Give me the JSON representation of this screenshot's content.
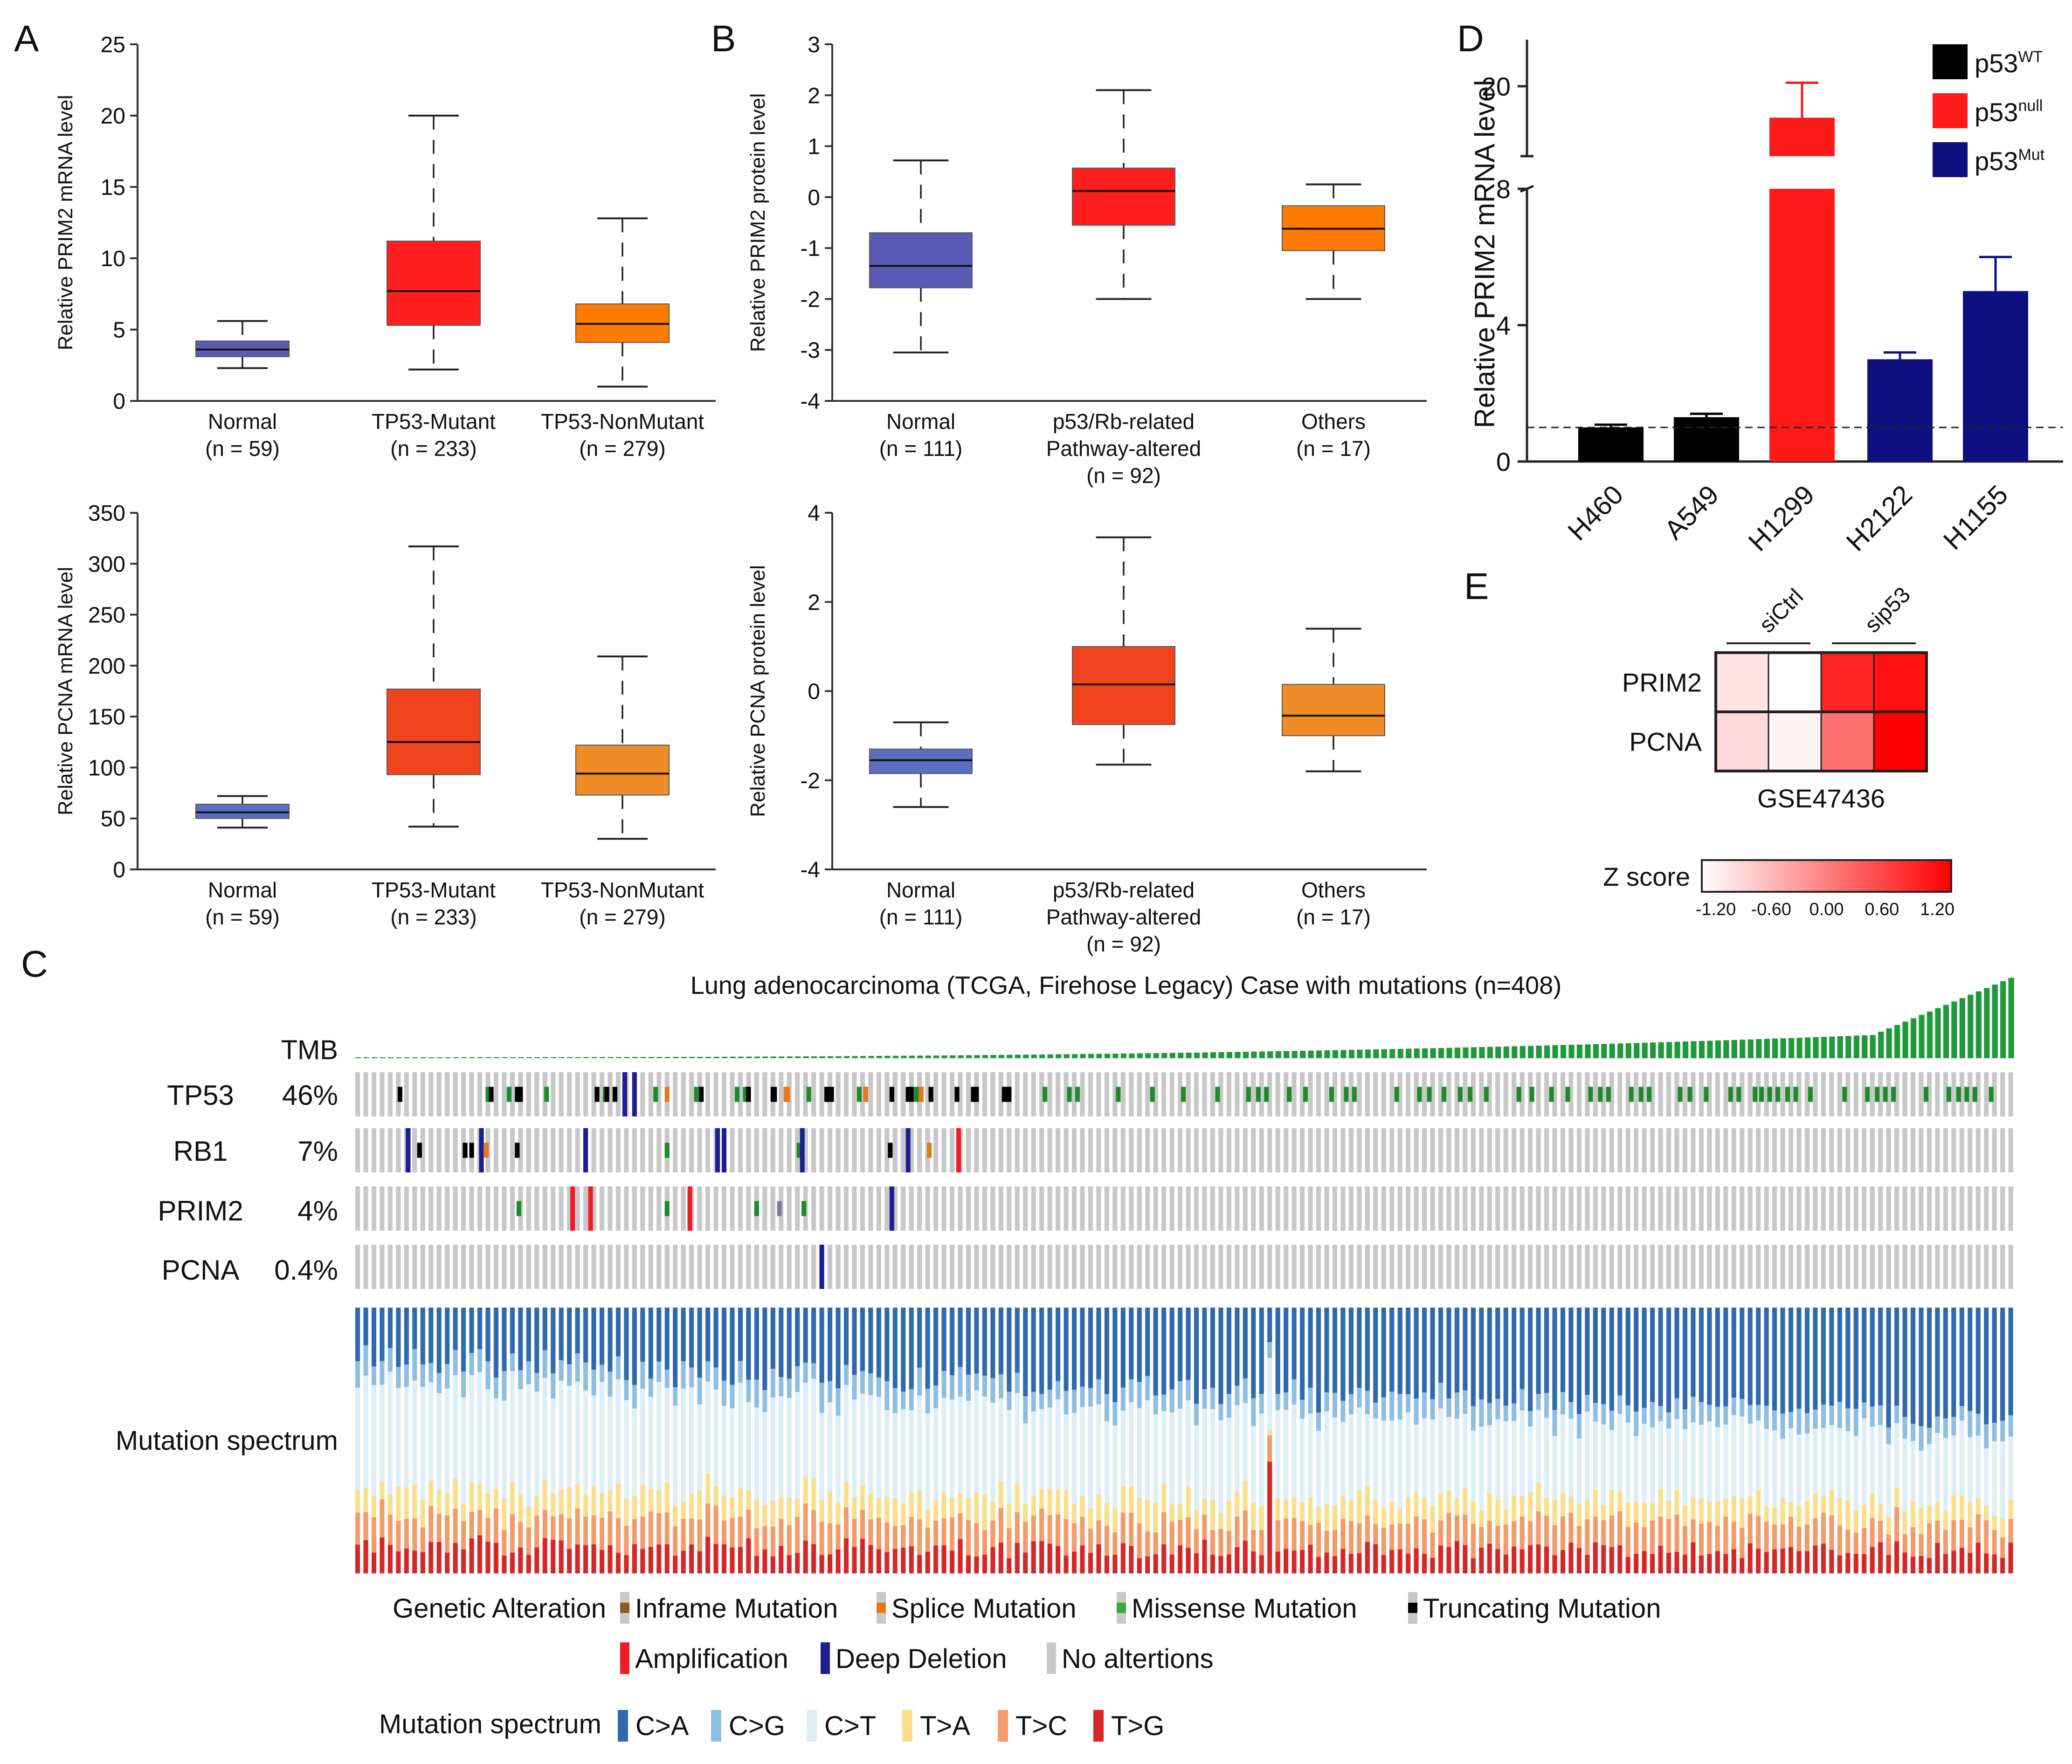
{
  "panel_letters": [
    "A",
    "B",
    "C",
    "D",
    "E"
  ],
  "chart_data": [
    {
      "id": "A1",
      "type": "box",
      "ylabel": "Relative PRIM2 mRNA level",
      "ylim": [
        0,
        25
      ],
      "yticks": [
        0,
        5,
        10,
        15,
        20,
        25
      ],
      "groups": [
        {
          "label": [
            "Normal",
            "(n = 59)"
          ],
          "min": 2.3,
          "q1": 3.1,
          "median": 3.6,
          "q3": 4.2,
          "max": 5.6,
          "color": "#5b5bb5"
        },
        {
          "label": [
            "TP53-Mutant",
            "(n = 233)"
          ],
          "min": 2.2,
          "q1": 5.3,
          "median": 7.7,
          "q3": 11.2,
          "max": 20.0,
          "color": "#ff1e1e"
        },
        {
          "label": [
            "TP53-NonMutant",
            "(n = 279)"
          ],
          "min": 1.0,
          "q1": 4.1,
          "median": 5.4,
          "q3": 6.8,
          "max": 12.8,
          "color": "#ff7a00"
        }
      ]
    },
    {
      "id": "A2",
      "type": "box",
      "ylabel": "Relative PCNA mRNA level",
      "ylim": [
        0,
        350
      ],
      "yticks": [
        0,
        50,
        100,
        150,
        200,
        250,
        300,
        350
      ],
      "groups": [
        {
          "label": [
            "Normal",
            "(n = 59)"
          ],
          "min": 41,
          "q1": 50,
          "median": 56,
          "q3": 64,
          "max": 72,
          "color": "#5b6fc0"
        },
        {
          "label": [
            "TP53-Mutant",
            "(n = 233)"
          ],
          "min": 42,
          "q1": 93,
          "median": 125,
          "q3": 177,
          "max": 317,
          "color": "#f0441e"
        },
        {
          "label": [
            "TP53-NonMutant",
            "(n = 279)"
          ],
          "min": 30,
          "q1": 73,
          "median": 94,
          "q3": 122,
          "max": 209,
          "color": "#f08c28"
        }
      ]
    },
    {
      "id": "B1",
      "type": "box",
      "ylabel": "Relative PRIM2 protein level",
      "ylim": [
        -4,
        3
      ],
      "yticks": [
        -4,
        -3,
        -2,
        -1,
        0,
        1,
        2,
        3
      ],
      "groups": [
        {
          "label": [
            "Normal",
            "(n = 111)"
          ],
          "min": -3.05,
          "q1": -1.78,
          "median": -1.35,
          "q3": -0.7,
          "max": 0.72,
          "color": "#5b5bb5"
        },
        {
          "label": [
            "p53/Rb-related",
            "Pathway-altered",
            "(n = 92)"
          ],
          "min": -2.0,
          "q1": -0.55,
          "median": 0.12,
          "q3": 0.57,
          "max": 2.1,
          "color": "#ff1e1e"
        },
        {
          "label": [
            "Others",
            "(n = 17)"
          ],
          "min": -2.0,
          "q1": -1.05,
          "median": -0.62,
          "q3": -0.17,
          "max": 0.25,
          "color": "#ff7a00"
        }
      ]
    },
    {
      "id": "B2",
      "type": "box",
      "ylabel": "Relative PCNA protein level",
      "ylim": [
        -4,
        4
      ],
      "yticks": [
        -4,
        -2,
        0,
        2,
        4
      ],
      "groups": [
        {
          "label": [
            "Normal",
            "(n = 111)"
          ],
          "min": -2.6,
          "q1": -1.85,
          "median": -1.55,
          "q3": -1.3,
          "max": -0.7,
          "color": "#5b6fc0"
        },
        {
          "label": [
            "p53/Rb-related",
            "Pathway-altered",
            "(n = 92)"
          ],
          "min": -1.65,
          "q1": -0.75,
          "median": 0.15,
          "q3": 1.0,
          "max": 3.45,
          "color": "#f0441e"
        },
        {
          "label": [
            "Others",
            "(n = 17)"
          ],
          "min": -1.8,
          "q1": -1.0,
          "median": -0.55,
          "q3": 0.15,
          "max": 1.4,
          "color": "#f08c28"
        }
      ]
    },
    {
      "id": "D",
      "type": "bar",
      "ylabel": "Relative PRIM2 mRNA level",
      "yticks_lower": [
        0,
        4,
        8
      ],
      "yticks_upper": [
        20
      ],
      "axis_break": [
        8,
        16
      ],
      "reference_line": 1,
      "categories": [
        "H460",
        "A549",
        "H1299",
        "H2122",
        "H1155"
      ],
      "values": [
        1.0,
        1.3,
        18.2,
        3.0,
        5.0
      ],
      "errors": [
        0.08,
        0.1,
        2.0,
        0.2,
        1.0
      ],
      "groups": [
        "p53WT",
        "p53WT",
        "p53null",
        "p53Mut",
        "p53Mut"
      ],
      "legend": [
        {
          "base": "p53",
          "sup": "WT",
          "color": "#000000"
        },
        {
          "base": "p53",
          "sup": "null",
          "color": "#ff1a1a"
        },
        {
          "base": "p53",
          "sup": "Mut",
          "color": "#0f0f80"
        }
      ]
    },
    {
      "id": "E",
      "type": "heatmap",
      "rows": [
        "PRIM2",
        "PCNA"
      ],
      "column_groups": [
        "siCtrl",
        "sip53"
      ],
      "values": [
        [
          -0.95,
          -1.2,
          0.85,
          1.05
        ],
        [
          -0.85,
          -1.1,
          0.15,
          1.25
        ]
      ],
      "xlabel": "GSE47436",
      "colorbar": {
        "title": "Z score",
        "ticks": [
          "-1.20",
          "-0.60",
          "0.00",
          "0.60",
          "1.20"
        ],
        "range": [
          -1.2,
          1.2
        ],
        "low": "#ffffff",
        "high": "#ff0000"
      }
    },
    {
      "id": "C",
      "type": "oncoprint",
      "title": "Lung adenocarcinoma (TCGA, Firehose Legacy) Case with mutations (n=408)",
      "n_columns": 204,
      "tmb_label": "TMB",
      "tracks": [
        {
          "gene": "TP53",
          "pct": "46%",
          "events": "g80:4,g93:4,g98:4,g116:4,g152:4,g183:4,g208:4,g233:4,g238:4,g277:4,g308:4,g312:4,g343:4,g378:4,g422:4,g437:4,g442:4,g467:4,g488:4,g507:4,g528:4,g547:4,g553:4,g558:4,g572:4,g582:4,g598:4,g607:4,g612:4,g638:4,g652:4,g658:4,g667:4,g677:4,g683:4,g693:4,g713:4,g721:4,g733:4,g743:4,g757:4,g763:4,g768:4,g782:4,g788:4,g793:4,g812:4,g818:4,g828:4,g843:4,g848:4,g858:4,g862:4,g867:4,g872:4,g878:4,g883:4,g892:4,g913:4,g927:4,g933:4,g938:4,g943:4,g963:4,g977:4,g983:4,g988:4,g993:4,g1003:4,b26:3,b82:3,b98:3,b100:3,b147:3,b153:3,b158:3,b211:3,b240:3,b255:3,b256:3,b288:3,b289:3,b291:3,b312:3,b328:3,b338:3,b340:3,b346:3,b352:3,b368:3,b378:3,b380:3,b397:3,b398:3,b400:3,d164:0,d170:0,s190:1,s263:1,s264:1,s312:1,s346:1"
        },
        {
          "gene": "RB1",
          "pct": "7%",
          "events": "d31:0,b38:3,b66:3,b70:3,d76:0,s79:1,b98:3,d140:0,g190:4,d221:0,d225:0,g271:4,d273:0,b327:3,d338:0,s351:1,a369:5"
        },
        {
          "gene": "PRIM2",
          "pct": "4%",
          "events": "g99:4,a132:5,a143:5,g190:4,a204:5,g245:4,i259:0,g274:4,d328:0"
        },
        {
          "gene": "PCNA",
          "pct": "0.4%",
          "events": "d285:0"
        }
      ],
      "spectrum_label": "Mutation spectrum",
      "legend": {
        "genetic_label": "Genetic Alteration",
        "genetic": [
          {
            "label": "Inframe Mutation",
            "color": "#8c5a1e"
          },
          {
            "label": "Splice Mutation",
            "color": "#e8771e"
          },
          {
            "label": "Missense Mutation",
            "color": "#3aa83a"
          },
          {
            "label": "Truncating Mutation",
            "color": "#000000"
          },
          {
            "label": "Amplification",
            "color": "#ee1c25"
          },
          {
            "label": "Deep Deletion",
            "color": "#1e1e90"
          },
          {
            "label": "No altertions",
            "color": "#c8c8c8"
          }
        ],
        "spectrum_title": "Mutation spectrum",
        "spectrum": [
          {
            "label": "C>A",
            "color": "#2e6aae"
          },
          {
            "label": "C>G",
            "color": "#8fbfe0"
          },
          {
            "label": "C>T",
            "color": "#ddeef6"
          },
          {
            "label": "T>A",
            "color": "#f7df8c"
          },
          {
            "label": "T>C",
            "color": "#f29b6b"
          },
          {
            "label": "T>G",
            "color": "#d62728"
          }
        ]
      }
    }
  ]
}
